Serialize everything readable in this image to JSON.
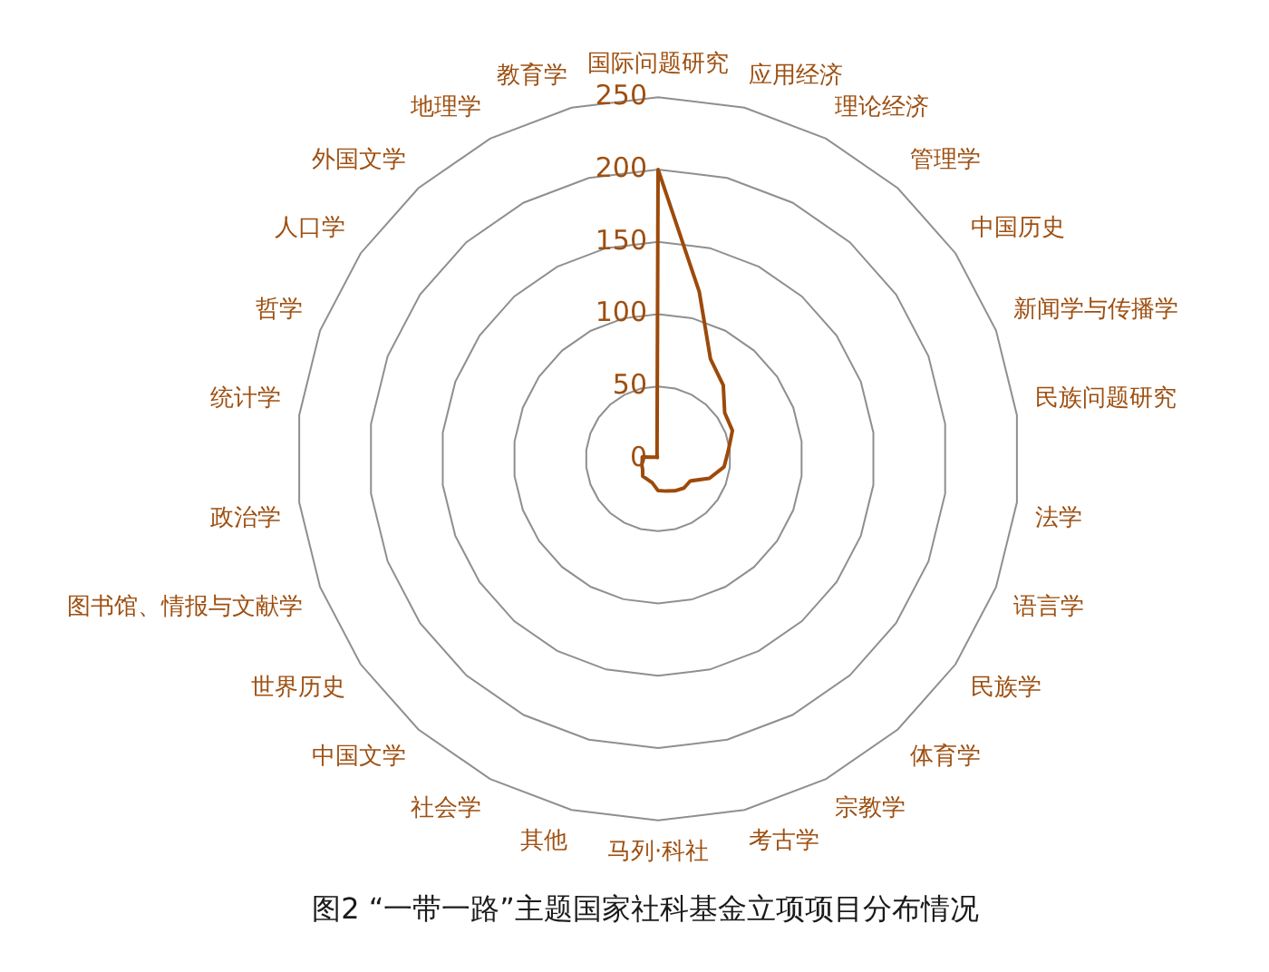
{
  "chart_data": {
    "type": "radar",
    "title": "图2 “一带一路”主题国家社科基金立项项目分布情况",
    "categories": [
      "国际问题研究",
      "应用经济",
      "理论经济",
      "管理学",
      "中国历史",
      "新闻学与传播学",
      "民族问题研究",
      "法学",
      "语言学",
      "民族学",
      "体育学",
      "宗教学",
      "考古学",
      "马列·科社",
      "其他",
      "社会学",
      "中国文学",
      "世界历史",
      "图书馆、情报与文献学",
      "政治学",
      "统计学",
      "哲学",
      "人口学",
      "外国文学",
      "地理学",
      "教育学"
    ],
    "series": [
      {
        "color": "#9c4a0b",
        "values": [
          200,
          119,
          78,
          68,
          56,
          55,
          49,
          46,
          38,
          27,
          27,
          25,
          23,
          22,
          17,
          16,
          16,
          13,
          12,
          11,
          11,
          3,
          2,
          2,
          1,
          3
        ]
      }
    ],
    "ylim": [
      0,
      250
    ],
    "yticks": [
      0,
      50,
      100,
      150,
      200,
      250
    ],
    "grid": true,
    "legend": false,
    "marker": "none",
    "line_style": "solid"
  }
}
